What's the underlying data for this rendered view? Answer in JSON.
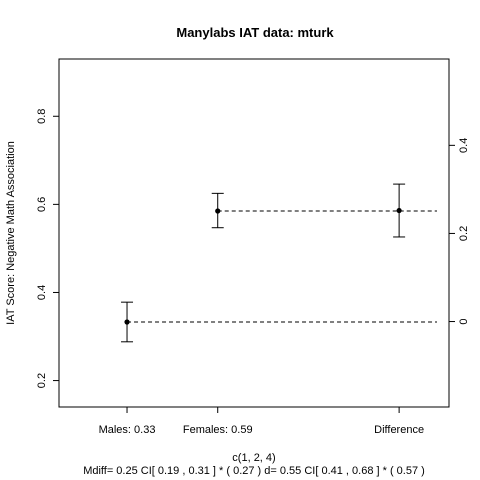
{
  "chart_data": {
    "type": "scatter",
    "title": "Manylabs IAT data:  mturk",
    "ylabel": "IAT Score: Negative Math Association",
    "xlabel": "c(1, 2, 4)",
    "subtitle": "Mdiff= 0.25  CI[ 0.19 , 0.31 ] *  ( 0.27 )   d= 0.55 CI[ 0.41 ,  0.68 ] *  ( 0.57 )",
    "x_ticks": [
      {
        "x": 1,
        "label": "Males:  0.33"
      },
      {
        "x": 2,
        "label": "Females:  0.59"
      },
      {
        "x": 4,
        "label": "Difference"
      }
    ],
    "xlim": [
      0.25,
      4.55
    ],
    "ylim": [
      0.14,
      0.93
    ],
    "y_ticks": [
      0.2,
      0.4,
      0.6,
      0.8
    ],
    "right_axis": {
      "offset": 0.334,
      "ticks": [
        0,
        0.2,
        0.4
      ]
    },
    "points": [
      {
        "x": 1,
        "y": 0.333,
        "lo": 0.288,
        "hi": 0.378,
        "axis": "left"
      },
      {
        "x": 2,
        "y": 0.585,
        "lo": 0.547,
        "hi": 0.625,
        "axis": "left"
      },
      {
        "x": 4,
        "y": 0.252,
        "lo": 0.192,
        "hi": 0.312,
        "axis": "right"
      }
    ],
    "reference_lines": [
      {
        "x_from": 1,
        "y": 0.333
      },
      {
        "x_from": 2,
        "y": 0.585
      }
    ],
    "grid": false,
    "legend": "none"
  }
}
